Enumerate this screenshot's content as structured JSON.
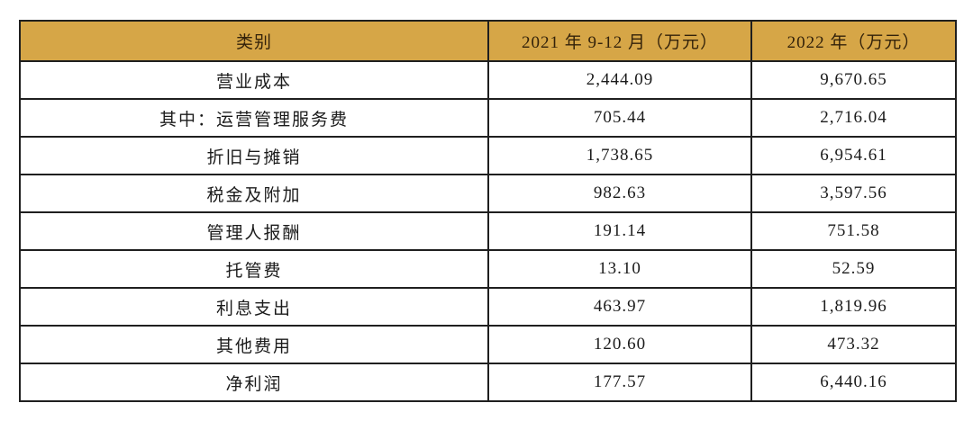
{
  "table": {
    "columns": [
      {
        "label": "类别"
      },
      {
        "label": "2021 年 9-12 月（万元）"
      },
      {
        "label": "2022 年（万元）"
      }
    ],
    "rows": [
      {
        "category": "营业成本",
        "v2021": "2,444.09",
        "v2022": "9,670.65"
      },
      {
        "category": "其中：运营管理服务费",
        "v2021": "705.44",
        "v2022": "2,716.04"
      },
      {
        "category": "折旧与摊销",
        "v2021": "1,738.65",
        "v2022": "6,954.61"
      },
      {
        "category": "税金及附加",
        "v2021": "982.63",
        "v2022": "3,597.56"
      },
      {
        "category": "管理人报酬",
        "v2021": "191.14",
        "v2022": "751.58"
      },
      {
        "category": "托管费",
        "v2021": "13.10",
        "v2022": "52.59"
      },
      {
        "category": "利息支出",
        "v2021": "463.97",
        "v2022": "1,819.96"
      },
      {
        "category": "其他费用",
        "v2021": "120.60",
        "v2022": "473.32"
      },
      {
        "category": "净利润",
        "v2021": "177.57",
        "v2022": "6,440.16"
      }
    ],
    "colors": {
      "header_bg": "#d6a647",
      "header_text": "#33220a",
      "border": "#1f1f1f",
      "body_text": "#1b1b1b",
      "page_bg": "#ffffff"
    }
  }
}
